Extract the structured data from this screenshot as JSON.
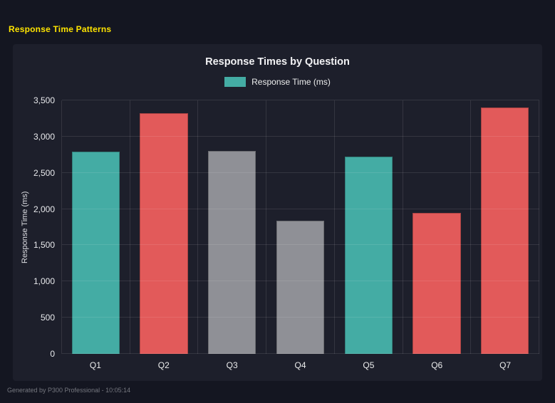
{
  "page": {
    "title": "Response Time Patterns",
    "footer": "Generated by P300 Professional - 10:05:14"
  },
  "colors": {
    "accent_yellow": "#ffe400",
    "background": "#141621",
    "panel": "#1d1f2b",
    "teal": "#44aca4",
    "red": "#e25a5a",
    "gray": "#8f9096"
  },
  "chart_data": {
    "type": "bar",
    "title": "Response Times by Question",
    "legend": [
      {
        "label": "Response Time (ms)",
        "color": "#44aca4"
      }
    ],
    "legend_position": "top",
    "categories": [
      "Q1",
      "Q2",
      "Q3",
      "Q4",
      "Q5",
      "Q6",
      "Q7"
    ],
    "values": [
      2790,
      3320,
      2800,
      1840,
      2720,
      1950,
      3400
    ],
    "bar_colors": [
      "#44aca4",
      "#e25a5a",
      "#8f9096",
      "#8f9096",
      "#44aca4",
      "#e25a5a",
      "#e25a5a"
    ],
    "xlabel": "",
    "ylabel": "Response Time (ms)",
    "ylim": [
      0,
      3500
    ],
    "yticks": [
      0,
      500,
      1000,
      1500,
      2000,
      2500,
      3000,
      3500
    ],
    "ytick_labels": [
      "0",
      "500",
      "1,000",
      "1,500",
      "2,000",
      "2,500",
      "3,000",
      "3,500"
    ],
    "grid": true
  }
}
